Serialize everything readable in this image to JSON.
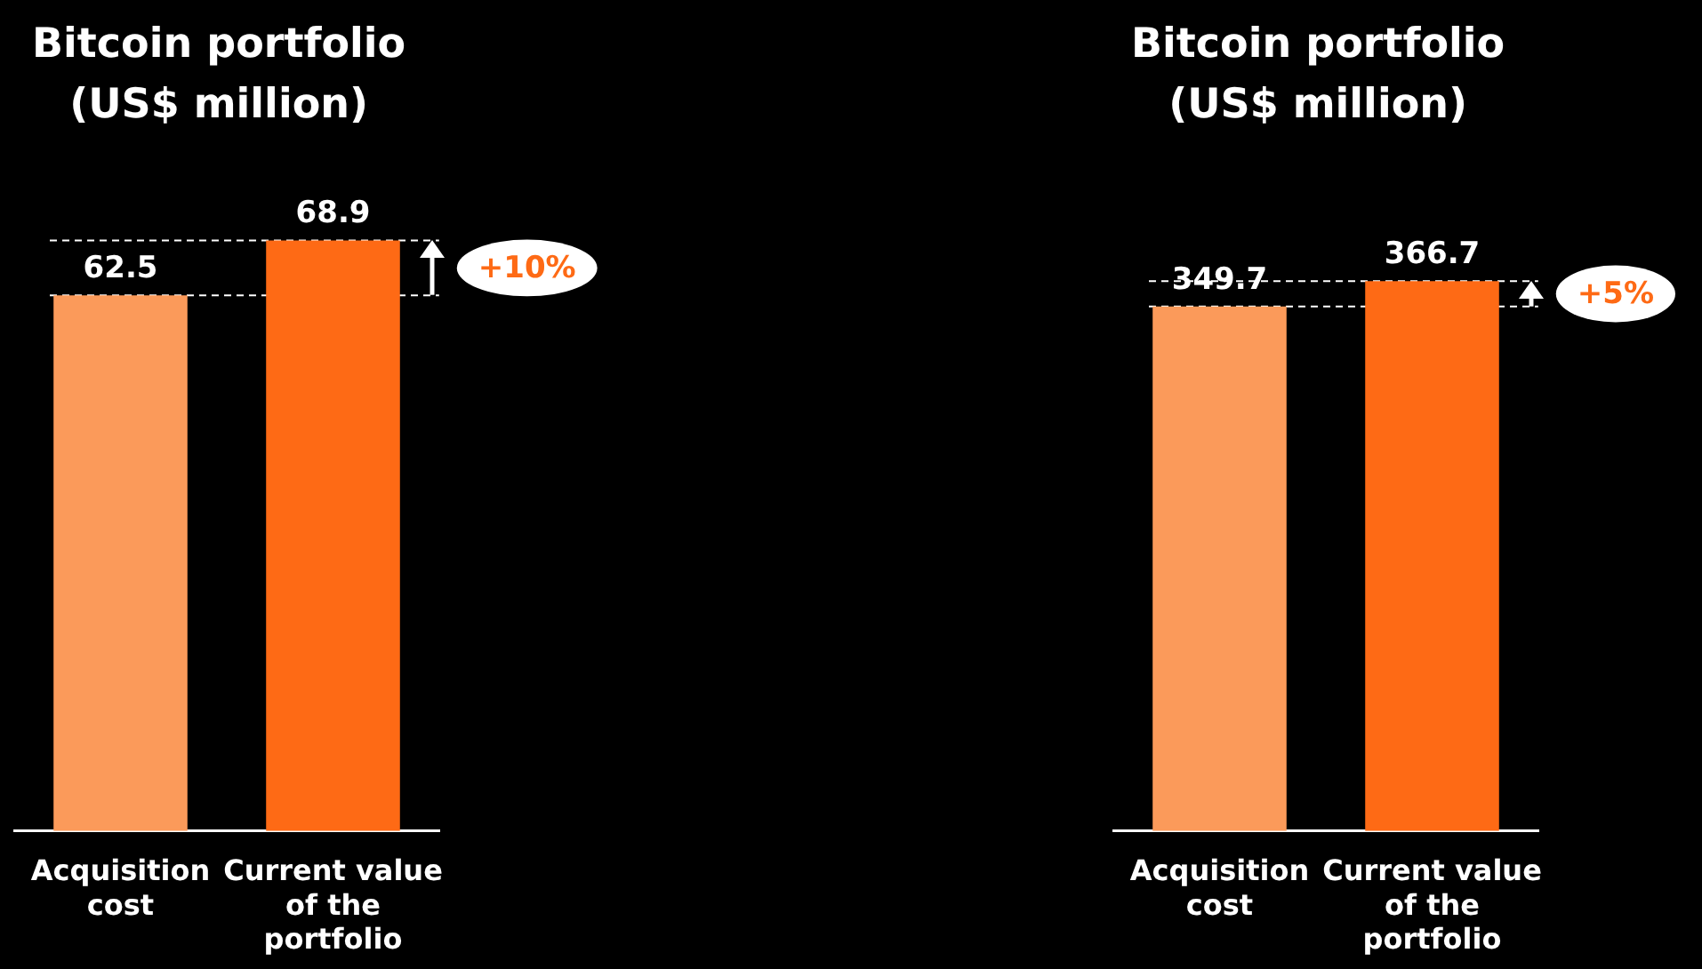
{
  "chart_data": [
    {
      "type": "bar",
      "title": "Bitcoin portfolio\n(US$ million)",
      "categories": [
        "Acquisition cost",
        "Current value of the portfolio"
      ],
      "values": [
        62.5,
        68.9
      ],
      "colors": [
        "#fb9a5a",
        "#fe6a15"
      ],
      "data_labels": true,
      "grid": false,
      "legend": false,
      "tick_labels": "x",
      "ref_lines": [
        {
          "axis": "y",
          "value": 62.5,
          "color": "#ffffff",
          "line_style": "dashed"
        },
        {
          "axis": "y",
          "value": 68.9,
          "color": "#ffffff",
          "line_style": "dashed"
        }
      ],
      "annotations": [
        "+10%"
      ]
    },
    {
      "type": "bar",
      "title": "Bitcoin portfolio\n(US$ million)",
      "categories": [
        "Acquisition cost",
        "Current value of the portfolio"
      ],
      "values": [
        349.7,
        366.7
      ],
      "colors": [
        "#fb9a5a",
        "#fe6a15"
      ],
      "data_labels": true,
      "grid": false,
      "legend": false,
      "tick_labels": "x",
      "ref_lines": [
        {
          "axis": "y",
          "value": 349.7,
          "color": "#ffffff",
          "line_style": "dashed"
        },
        {
          "axis": "y",
          "value": 366.7,
          "color": "#ffffff",
          "line_style": "dashed"
        }
      ],
      "annotations": [
        "+5%"
      ]
    }
  ]
}
